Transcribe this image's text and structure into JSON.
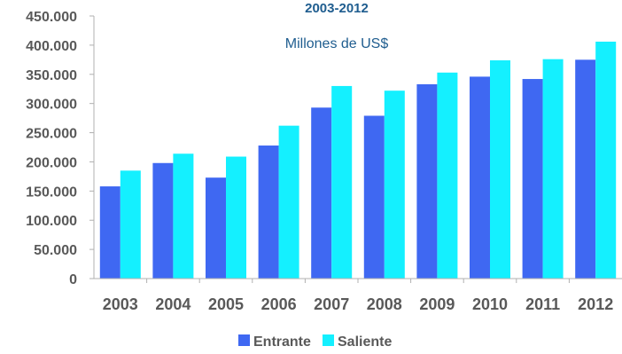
{
  "chart_data": {
    "type": "bar",
    "title": "2003-2012",
    "subtitle": "Millones de US$",
    "xlabel": "",
    "ylabel": "",
    "categories": [
      "2003",
      "2004",
      "2005",
      "2006",
      "2007",
      "2008",
      "2009",
      "2010",
      "2011",
      "2012"
    ],
    "series": [
      {
        "name": "Entrante",
        "color": "#3f68f2",
        "values": [
          158000,
          198000,
          173000,
          228000,
          293000,
          279000,
          333000,
          346000,
          342000,
          375000
        ]
      },
      {
        "name": "Saliente",
        "color": "#14f0ff",
        "values": [
          185000,
          214000,
          209000,
          262000,
          330000,
          322000,
          353000,
          374000,
          376000,
          406000
        ]
      }
    ],
    "ylim": [
      0,
      450000
    ],
    "yticks": [
      "0",
      "50.000",
      "100.000",
      "150.000",
      "200.000",
      "250.000",
      "300.000",
      "350.000",
      "400.000",
      "450.000"
    ],
    "grid": false,
    "legend_position": "bottom"
  }
}
